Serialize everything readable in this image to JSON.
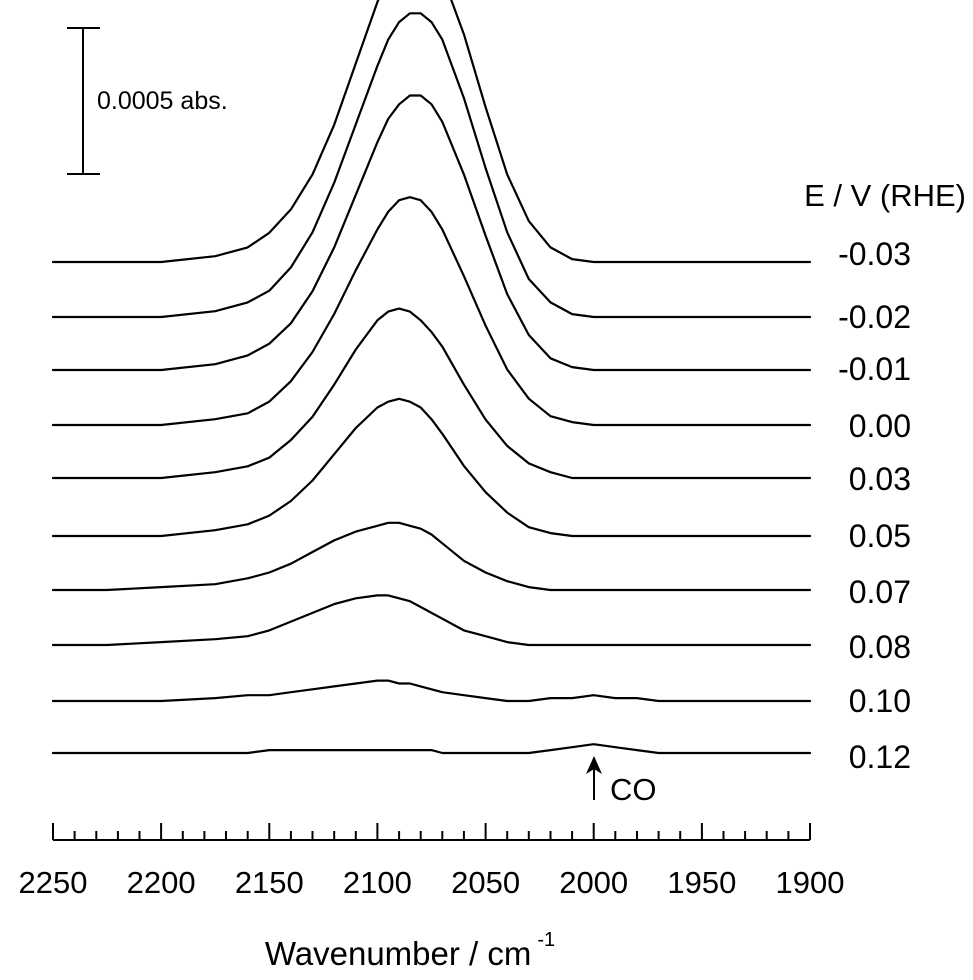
{
  "chart_data": {
    "type": "line",
    "xlabel": "Wavenumber / cm",
    "xlabel_superscript": "-1",
    "x_reversed": true,
    "xlim": [
      2250,
      1900
    ],
    "x_ticks": [
      2250,
      2200,
      2150,
      2100,
      2050,
      2000,
      1950,
      1900
    ],
    "x_minor_step": 10,
    "grid": false,
    "legend_title": "E / V (RHE)",
    "legend_placement": "right",
    "scale_bar": {
      "label": "0.0005 abs.",
      "value": 0.0005
    },
    "annotation": {
      "text": "CO",
      "x": 2000
    },
    "x": [
      2250,
      2225,
      2200,
      2175,
      2160,
      2150,
      2140,
      2130,
      2120,
      2110,
      2100,
      2095,
      2090,
      2085,
      2080,
      2075,
      2070,
      2060,
      2050,
      2040,
      2030,
      2020,
      2010,
      2000,
      1990,
      1980,
      1970,
      1960,
      1950,
      1940,
      1930,
      1920,
      1910,
      1900
    ],
    "series": [
      {
        "name": "-0.03",
        "values": [
          0.0,
          0.0,
          0.0,
          2e-05,
          5e-05,
          0.0001,
          0.00018,
          0.0003,
          0.00047,
          0.00068,
          0.00089,
          0.00098,
          0.00104,
          0.00107,
          0.00107,
          0.00104,
          0.00098,
          0.00078,
          0.00053,
          0.0003,
          0.00014,
          5e-05,
          1e-05,
          0.0,
          0.0,
          0.0,
          0.0,
          0.0,
          0.0,
          0.0,
          0.0,
          0.0,
          0.0,
          0.0
        ]
      },
      {
        "name": "-0.02",
        "values": [
          0.0,
          0.0,
          0.0,
          2e-05,
          5e-05,
          9e-05,
          0.00017,
          0.00029,
          0.00046,
          0.00066,
          0.00086,
          0.00095,
          0.00101,
          0.00104,
          0.00104,
          0.00101,
          0.00095,
          0.00075,
          0.00051,
          0.00029,
          0.00013,
          5e-05,
          1e-05,
          0.0,
          0.0,
          0.0,
          0.0,
          0.0,
          0.0,
          0.0,
          0.0,
          0.0,
          0.0,
          0.0
        ]
      },
      {
        "name": "-0.01",
        "values": [
          0.0,
          0.0,
          0.0,
          2e-05,
          5e-05,
          9e-05,
          0.00016,
          0.00027,
          0.00042,
          0.0006,
          0.00078,
          0.00086,
          0.00091,
          0.00094,
          0.00094,
          0.00091,
          0.00085,
          0.00067,
          0.00046,
          0.00026,
          0.00012,
          4e-05,
          1e-05,
          0.0,
          0.0,
          0.0,
          0.0,
          0.0,
          0.0,
          0.0,
          0.0,
          0.0,
          0.0,
          0.0
        ]
      },
      {
        "name": "0.00",
        "values": [
          0.0,
          0.0,
          0.0,
          2e-05,
          4e-05,
          8e-05,
          0.00015,
          0.00025,
          0.00038,
          0.00053,
          0.00067,
          0.00073,
          0.00077,
          0.00078,
          0.00077,
          0.00073,
          0.00067,
          0.00051,
          0.00034,
          0.00019,
          9e-05,
          3e-05,
          1e-05,
          0.0,
          0.0,
          0.0,
          0.0,
          0.0,
          0.0,
          0.0,
          0.0,
          0.0,
          0.0,
          0.0
        ]
      },
      {
        "name": "0.03",
        "values": [
          0.0,
          0.0,
          0.0,
          2e-05,
          4e-05,
          7e-05,
          0.00013,
          0.00021,
          0.00032,
          0.00044,
          0.00054,
          0.00057,
          0.00058,
          0.00057,
          0.00054,
          0.0005,
          0.00045,
          0.00032,
          0.0002,
          0.00011,
          5e-05,
          2e-05,
          0.0,
          0.0,
          0.0,
          0.0,
          0.0,
          0.0,
          0.0,
          0.0,
          0.0,
          0.0,
          0.0,
          0.0
        ]
      },
      {
        "name": "0.05",
        "values": [
          0.0,
          0.0,
          0.0,
          2e-05,
          4e-05,
          7e-05,
          0.00012,
          0.00019,
          0.00028,
          0.00037,
          0.00044,
          0.00046,
          0.00047,
          0.00046,
          0.00044,
          0.0004,
          0.00035,
          0.00024,
          0.00015,
          8e-05,
          3e-05,
          1e-05,
          0.0,
          0.0,
          0.0,
          0.0,
          0.0,
          0.0,
          0.0,
          0.0,
          0.0,
          0.0,
          0.0,
          0.0
        ]
      },
      {
        "name": "0.07",
        "values": [
          0.0,
          0.0,
          1e-05,
          2e-05,
          4e-05,
          6e-05,
          9e-05,
          0.00013,
          0.00017,
          0.0002,
          0.00022,
          0.00023,
          0.00023,
          0.00022,
          0.00021,
          0.00019,
          0.00016,
          0.0001,
          6e-05,
          3e-05,
          1e-05,
          0.0,
          0.0,
          0.0,
          0.0,
          0.0,
          0.0,
          0.0,
          0.0,
          0.0,
          0.0,
          0.0,
          0.0,
          0.0
        ]
      },
      {
        "name": "0.08",
        "values": [
          0.0,
          0.0,
          1e-05,
          2e-05,
          3e-05,
          5e-05,
          8e-05,
          0.00011,
          0.00014,
          0.00016,
          0.00017,
          0.00017,
          0.00016,
          0.00015,
          0.00013,
          0.00011,
          9e-05,
          5e-05,
          3e-05,
          1e-05,
          0.0,
          0.0,
          0.0,
          0.0,
          0.0,
          0.0,
          0.0,
          0.0,
          0.0,
          0.0,
          0.0,
          0.0,
          0.0,
          0.0
        ]
      },
      {
        "name": "0.10",
        "values": [
          0.0,
          0.0,
          0.0,
          1e-05,
          2e-05,
          2e-05,
          3e-05,
          4e-05,
          5e-05,
          6e-05,
          7e-05,
          7e-05,
          6e-05,
          6e-05,
          5e-05,
          4e-05,
          3e-05,
          2e-05,
          1e-05,
          0.0,
          0.0,
          1e-05,
          1e-05,
          2e-05,
          1e-05,
          1e-05,
          0.0,
          0.0,
          0.0,
          0.0,
          0.0,
          0.0,
          0.0,
          0.0
        ]
      },
      {
        "name": "0.12",
        "values": [
          0.0,
          0.0,
          0.0,
          0.0,
          0.0,
          1e-05,
          1e-05,
          1e-05,
          1e-05,
          1e-05,
          1e-05,
          1e-05,
          1e-05,
          1e-05,
          1e-05,
          1e-05,
          0.0,
          0.0,
          0.0,
          0.0,
          0.0,
          1e-05,
          2e-05,
          3e-05,
          2e-05,
          1e-05,
          0.0,
          0.0,
          0.0,
          0.0,
          0.0,
          0.0,
          0.0,
          0.0
        ]
      }
    ]
  }
}
